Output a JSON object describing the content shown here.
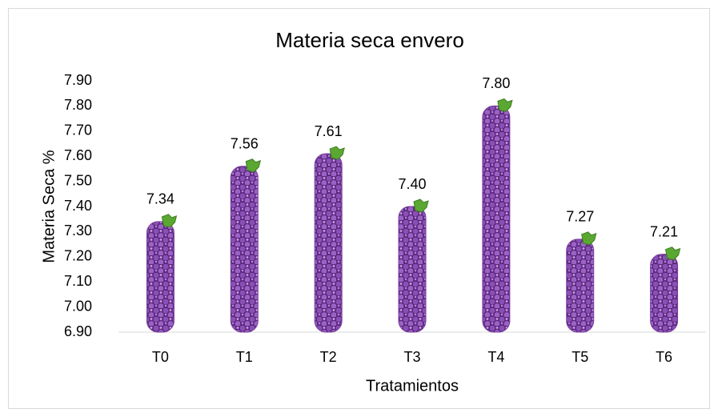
{
  "chart_data": {
    "type": "bar",
    "title": "Materia seca envero",
    "x_label": "Tratamientos",
    "y_label": "Materia Seca %",
    "categories": [
      "T0",
      "T1",
      "T2",
      "T3",
      "T4",
      "T5",
      "T6"
    ],
    "values": [
      7.34,
      7.56,
      7.61,
      7.4,
      7.8,
      7.27,
      7.21
    ],
    "value_labels": [
      "7.34",
      "7.56",
      "7.61",
      "7.40",
      "7.80",
      "7.27",
      "7.21"
    ],
    "color": "#7b3f9e",
    "ylim": [
      6.9,
      7.9
    ],
    "yticks": [
      {
        "value": 6.9,
        "label": "6.90"
      },
      {
        "value": 7.0,
        "label": "7.00"
      },
      {
        "value": 7.1,
        "label": "7.10"
      },
      {
        "value": 7.2,
        "label": "7.20"
      },
      {
        "value": 7.3,
        "label": "7.30"
      },
      {
        "value": 7.4,
        "label": "7.40"
      },
      {
        "value": 7.5,
        "label": "7.50"
      },
      {
        "value": 7.6,
        "label": "7.60"
      },
      {
        "value": 7.7,
        "label": "7.70"
      },
      {
        "value": 7.8,
        "label": "7.80"
      },
      {
        "value": 7.9,
        "label": "7.90"
      }
    ],
    "grid": false
  }
}
